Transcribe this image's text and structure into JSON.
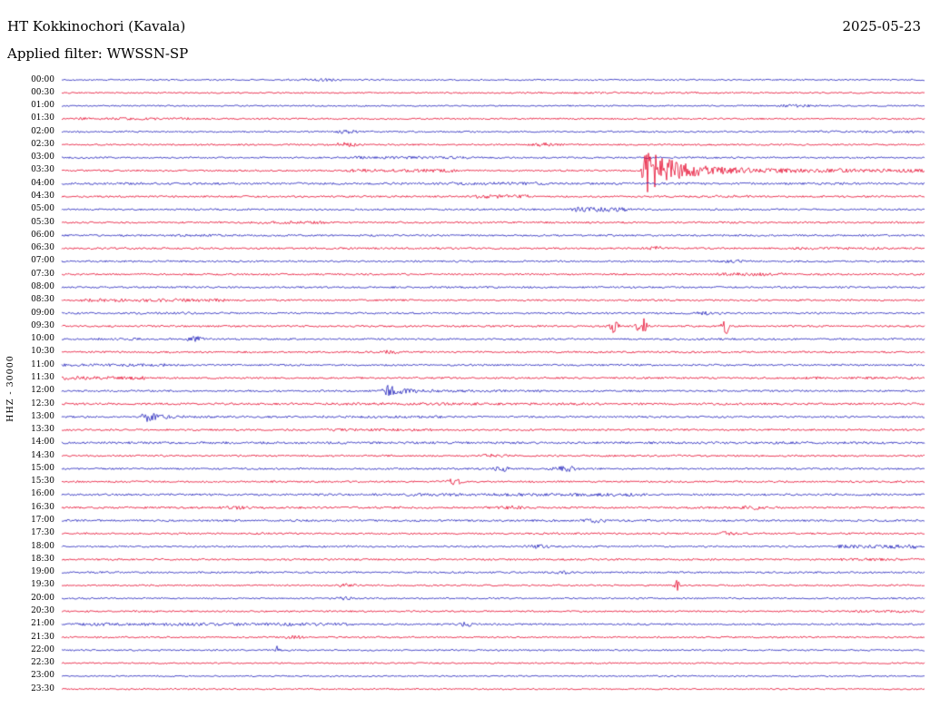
{
  "header": {
    "station": "HT Kokkinochori (Kavala)",
    "date": "2025-05-23",
    "filter": "Applied filter: WWSSN-SP"
  },
  "axis": {
    "scale_label": "HHZ - 30000"
  },
  "chart_data": {
    "type": "line",
    "subtype": "helicorder-seismogram",
    "title": "HT Kokkinochori (Kavala)",
    "date": "2025-05-23",
    "filter": "WWSSN-SP",
    "channel_scale_label": "HHZ - 30000",
    "row_duration_minutes": 30,
    "legend_position": "none",
    "grid": false,
    "colors": {
      "blue": "#2222bb",
      "red": "#e60a2e"
    },
    "rows": [
      {
        "label": "00:00",
        "color": "blue",
        "base": 0.8,
        "sections": [],
        "events": [
          {
            "t": 0.3,
            "type": "burst",
            "amp": 0.8,
            "w": 0.02
          }
        ]
      },
      {
        "label": "00:30",
        "color": "red",
        "base": 0.8,
        "sections": [
          {
            "from": 0.55,
            "to": 0.75,
            "amp": 1.1
          }
        ],
        "events": []
      },
      {
        "label": "01:00",
        "color": "blue",
        "base": 0.8,
        "sections": [],
        "events": [
          {
            "t": 0.85,
            "type": "burst",
            "amp": 1.0,
            "w": 0.015
          }
        ]
      },
      {
        "label": "01:30",
        "color": "red",
        "base": 0.9,
        "sections": [
          {
            "from": 0.02,
            "to": 0.15,
            "amp": 1.4
          }
        ],
        "events": []
      },
      {
        "label": "02:00",
        "color": "blue",
        "base": 0.9,
        "sections": [
          {
            "from": 0.88,
            "to": 0.99,
            "amp": 1.3
          }
        ],
        "events": [
          {
            "t": 0.33,
            "type": "burst",
            "amp": 1.6,
            "w": 0.008
          }
        ]
      },
      {
        "label": "02:30",
        "color": "red",
        "base": 0.9,
        "sections": [],
        "events": [
          {
            "t": 0.33,
            "type": "burst",
            "amp": 2.0,
            "w": 0.01
          },
          {
            "t": 0.56,
            "type": "burst",
            "amp": 1.2,
            "w": 0.01
          }
        ]
      },
      {
        "label": "03:00",
        "color": "blue",
        "base": 0.9,
        "sections": [
          {
            "from": 0.34,
            "to": 0.48,
            "amp": 1.5
          }
        ],
        "events": []
      },
      {
        "label": "03:30",
        "color": "red",
        "base": 1.0,
        "sections": [
          {
            "from": 0.33,
            "to": 0.46,
            "amp": 1.8
          }
        ],
        "events": [
          {
            "t": 0.676,
            "type": "quake",
            "amp": 24,
            "decay": 0.03,
            "tail": [
              2.5,
              0.3
            ]
          }
        ]
      },
      {
        "label": "04:00",
        "color": "blue",
        "base": 1.2,
        "sections": [
          {
            "from": 0.45,
            "to": 0.56,
            "amp": 1.7
          }
        ],
        "events": []
      },
      {
        "label": "04:30",
        "color": "red",
        "base": 1.0,
        "sections": [
          {
            "from": 0.48,
            "to": 0.54,
            "amp": 2.2
          },
          {
            "from": 0.73,
            "to": 0.8,
            "amp": 1.4
          }
        ],
        "events": []
      },
      {
        "label": "05:00",
        "color": "blue",
        "base": 1.0,
        "sections": [
          {
            "from": 0.59,
            "to": 0.66,
            "amp": 2.6
          }
        ],
        "events": []
      },
      {
        "label": "05:30",
        "color": "red",
        "base": 1.0,
        "sections": [
          {
            "from": 0.22,
            "to": 0.31,
            "amp": 1.6
          }
        ],
        "events": []
      },
      {
        "label": "06:00",
        "color": "blue",
        "base": 1.0,
        "sections": [
          {
            "from": 0.13,
            "to": 0.19,
            "amp": 1.4
          }
        ],
        "events": []
      },
      {
        "label": "06:30",
        "color": "red",
        "base": 1.0,
        "sections": [
          {
            "from": 0.84,
            "to": 0.96,
            "amp": 1.5
          }
        ],
        "events": [
          {
            "t": 0.69,
            "type": "burst",
            "amp": 1.8,
            "w": 0.006
          }
        ]
      },
      {
        "label": "07:00",
        "color": "blue",
        "base": 1.0,
        "sections": [],
        "events": [
          {
            "t": 0.78,
            "type": "burst",
            "amp": 1.6,
            "w": 0.008
          }
        ]
      },
      {
        "label": "07:30",
        "color": "red",
        "base": 1.0,
        "sections": [
          {
            "from": 0.76,
            "to": 0.84,
            "amp": 1.7
          }
        ],
        "events": []
      },
      {
        "label": "08:00",
        "color": "blue",
        "base": 1.0,
        "sections": [],
        "events": []
      },
      {
        "label": "08:30",
        "color": "red",
        "base": 1.0,
        "sections": [
          {
            "from": 0.02,
            "to": 0.19,
            "amp": 1.8
          }
        ],
        "events": []
      },
      {
        "label": "09:00",
        "color": "blue",
        "base": 1.0,
        "sections": [
          {
            "from": 0.08,
            "to": 0.2,
            "amp": 1.3
          }
        ],
        "events": [
          {
            "t": 0.75,
            "type": "burst",
            "amp": 1.3,
            "w": 0.01
          }
        ]
      },
      {
        "label": "09:30",
        "color": "red",
        "base": 1.0,
        "sections": [],
        "events": [
          {
            "t": 0.64,
            "type": "spike",
            "amp": 8,
            "w": 0.003
          },
          {
            "t": 0.672,
            "type": "spike",
            "amp": 13,
            "w": 0.0035
          },
          {
            "t": 0.77,
            "type": "spike",
            "amp": 10,
            "w": 0.003
          }
        ]
      },
      {
        "label": "10:00",
        "color": "blue",
        "base": 1.0,
        "sections": [
          {
            "from": 0.04,
            "to": 0.1,
            "amp": 1.4
          }
        ],
        "events": [
          {
            "t": 0.155,
            "type": "burst",
            "amp": 2.6,
            "w": 0.006
          }
        ]
      },
      {
        "label": "10:30",
        "color": "red",
        "base": 1.0,
        "sections": [],
        "events": [
          {
            "t": 0.38,
            "type": "burst",
            "amp": 1.4,
            "w": 0.008
          }
        ]
      },
      {
        "label": "11:00",
        "color": "blue",
        "base": 1.0,
        "sections": [
          {
            "from": 0.0,
            "to": 0.12,
            "amp": 1.7
          }
        ],
        "events": []
      },
      {
        "label": "11:30",
        "color": "red",
        "base": 1.0,
        "sections": [
          {
            "from": 0.0,
            "to": 0.1,
            "amp": 1.9
          },
          {
            "from": 0.84,
            "to": 1.0,
            "amp": 1.3
          }
        ],
        "events": []
      },
      {
        "label": "12:00",
        "color": "blue",
        "base": 1.0,
        "sections": [],
        "events": [
          {
            "t": 0.376,
            "type": "quake",
            "amp": 8,
            "decay": 0.012,
            "tail": [
              1.2,
              0.1
            ]
          }
        ]
      },
      {
        "label": "12:30",
        "color": "red",
        "base": 1.2,
        "sections": [
          {
            "from": 0.3,
            "to": 0.62,
            "amp": 1.4
          }
        ],
        "events": []
      },
      {
        "label": "13:00",
        "color": "blue",
        "base": 1.0,
        "sections": [
          {
            "from": 0.3,
            "to": 0.44,
            "amp": 1.4
          }
        ],
        "events": [
          {
            "t": 0.097,
            "type": "quake",
            "amp": 5.5,
            "decay": 0.01,
            "tail": [
              1,
              0.06
            ]
          }
        ]
      },
      {
        "label": "13:30",
        "color": "red",
        "base": 1.0,
        "sections": [
          {
            "from": 0.3,
            "to": 0.43,
            "amp": 1.5
          }
        ],
        "events": []
      },
      {
        "label": "14:00",
        "color": "blue",
        "base": 1.2,
        "sections": [
          {
            "from": 0.05,
            "to": 0.95,
            "amp": 1.3
          }
        ],
        "events": []
      },
      {
        "label": "14:30",
        "color": "red",
        "base": 1.0,
        "sections": [],
        "events": [
          {
            "t": 0.5,
            "type": "burst",
            "amp": 1.4,
            "w": 0.01
          }
        ]
      },
      {
        "label": "15:00",
        "color": "blue",
        "base": 1.0,
        "sections": [],
        "events": [
          {
            "t": 0.51,
            "type": "burst",
            "amp": 2.2,
            "w": 0.007
          },
          {
            "t": 0.585,
            "type": "burst",
            "amp": 2.6,
            "w": 0.009
          }
        ]
      },
      {
        "label": "15:30",
        "color": "red",
        "base": 1.0,
        "sections": [],
        "events": [
          {
            "t": 0.455,
            "type": "burst",
            "amp": 2.8,
            "w": 0.006
          }
        ]
      },
      {
        "label": "16:00",
        "color": "blue",
        "base": 1.1,
        "sections": [
          {
            "from": 0.4,
            "to": 0.68,
            "amp": 1.7
          }
        ],
        "events": []
      },
      {
        "label": "16:30",
        "color": "red",
        "base": 1.1,
        "sections": [],
        "events": [
          {
            "t": 0.2,
            "type": "burst",
            "amp": 1.3,
            "w": 0.01
          },
          {
            "t": 0.52,
            "type": "burst",
            "amp": 1.3,
            "w": 0.01
          },
          {
            "t": 0.8,
            "type": "burst",
            "amp": 1.3,
            "w": 0.01
          }
        ]
      },
      {
        "label": "17:00",
        "color": "blue",
        "base": 1.1,
        "sections": [],
        "events": [
          {
            "t": 0.62,
            "type": "burst",
            "amp": 1.7,
            "w": 0.008
          }
        ]
      },
      {
        "label": "17:30",
        "color": "red",
        "base": 1.0,
        "sections": [],
        "events": [
          {
            "t": 0.77,
            "type": "burst",
            "amp": 1.5,
            "w": 0.008
          }
        ]
      },
      {
        "label": "18:00",
        "color": "blue",
        "base": 1.0,
        "sections": [
          {
            "from": 0.9,
            "to": 0.99,
            "amp": 2.3
          }
        ],
        "events": [
          {
            "t": 0.55,
            "type": "burst",
            "amp": 1.4,
            "w": 0.008
          }
        ]
      },
      {
        "label": "18:30",
        "color": "red",
        "base": 1.0,
        "sections": [
          {
            "from": 0.9,
            "to": 0.99,
            "amp": 1.5
          }
        ],
        "events": []
      },
      {
        "label": "19:00",
        "color": "blue",
        "base": 1.0,
        "sections": [],
        "events": [
          {
            "t": 0.58,
            "type": "burst",
            "amp": 1.4,
            "w": 0.008
          }
        ]
      },
      {
        "label": "19:30",
        "color": "red",
        "base": 0.9,
        "sections": [],
        "events": [
          {
            "t": 0.712,
            "type": "spike",
            "amp": 12,
            "w": 0.0018
          },
          {
            "t": 0.33,
            "type": "burst",
            "amp": 1.3,
            "w": 0.008
          }
        ]
      },
      {
        "label": "20:00",
        "color": "blue",
        "base": 0.9,
        "sections": [],
        "events": [
          {
            "t": 0.33,
            "type": "burst",
            "amp": 1.6,
            "w": 0.006
          }
        ]
      },
      {
        "label": "20:30",
        "color": "red",
        "base": 0.9,
        "sections": [
          {
            "from": 0.92,
            "to": 1.0,
            "amp": 1.4
          }
        ],
        "events": []
      },
      {
        "label": "21:00",
        "color": "blue",
        "base": 1.0,
        "sections": [
          {
            "from": 0.01,
            "to": 0.34,
            "amp": 1.7
          }
        ],
        "events": [
          {
            "t": 0.47,
            "type": "burst",
            "amp": 1.7,
            "w": 0.007
          }
        ]
      },
      {
        "label": "21:30",
        "color": "red",
        "base": 0.9,
        "sections": [],
        "events": [
          {
            "t": 0.27,
            "type": "burst",
            "amp": 1.3,
            "w": 0.008
          }
        ]
      },
      {
        "label": "22:00",
        "color": "blue",
        "base": 0.9,
        "sections": [],
        "events": [
          {
            "t": 0.25,
            "type": "spike",
            "amp": 5,
            "w": 0.0018
          }
        ]
      },
      {
        "label": "22:30",
        "color": "red",
        "base": 0.8,
        "sections": [],
        "events": []
      },
      {
        "label": "23:00",
        "color": "blue",
        "base": 0.8,
        "sections": [],
        "events": []
      },
      {
        "label": "23:30",
        "color": "red",
        "base": 0.8,
        "sections": [],
        "events": []
      }
    ]
  }
}
